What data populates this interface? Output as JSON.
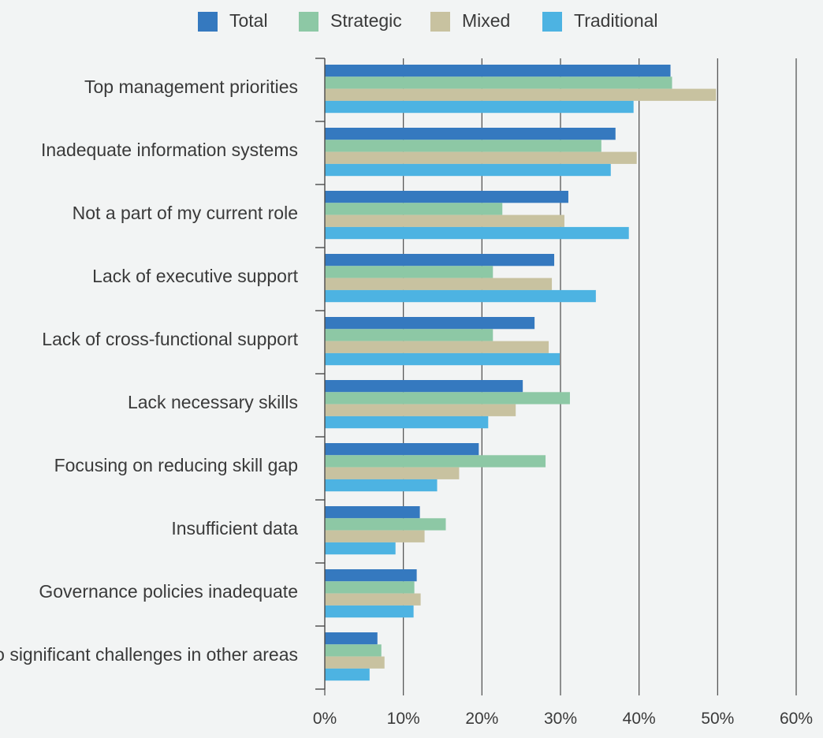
{
  "chart_data": {
    "type": "bar",
    "orientation": "horizontal",
    "categories": [
      "Top management priorities",
      "Inadequate information systems",
      "Not a part of my current role",
      "Lack of executive support",
      "Lack of cross-functional support",
      "Lack necessary skills",
      "Focusing on reducing skill gap",
      "Insufficient data",
      "Governance policies inadequate",
      "No significant challenges in other areas"
    ],
    "series": [
      {
        "name": "Total",
        "color": "#3579bf",
        "values": [
          44,
          37,
          31,
          29.2,
          26.7,
          25.2,
          19.6,
          12.1,
          11.7,
          6.7
        ]
      },
      {
        "name": "Strategic",
        "color": "#8dc8a5",
        "values": [
          44.2,
          35.2,
          22.6,
          21.4,
          21.4,
          31.2,
          28.1,
          15.4,
          11.4,
          7.2
        ]
      },
      {
        "name": "Mixed",
        "color": "#c8c2a0",
        "values": [
          49.8,
          39.7,
          30.5,
          28.9,
          28.5,
          24.3,
          17.1,
          12.7,
          12.2,
          7.6
        ]
      },
      {
        "name": "Traditional",
        "color": "#4db3e2",
        "values": [
          39.3,
          36.4,
          38.7,
          34.5,
          29.9,
          20.8,
          14.3,
          9.0,
          11.3,
          5.7
        ]
      }
    ],
    "xlim": [
      0,
      60
    ],
    "xticks": [
      0,
      10,
      20,
      30,
      40,
      50,
      60
    ],
    "xtick_labels": [
      "0%",
      "10%",
      "20%",
      "30%",
      "40%",
      "50%",
      "60%"
    ],
    "grid": "vertical",
    "legend": "top-center"
  }
}
